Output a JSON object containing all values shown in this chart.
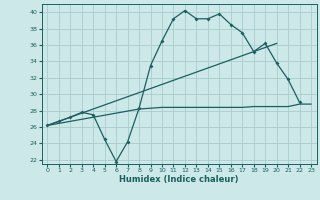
{
  "xlabel": "Humidex (Indice chaleur)",
  "xlim": [
    -0.5,
    23.5
  ],
  "ylim": [
    21.5,
    41.0
  ],
  "xticks": [
    0,
    1,
    2,
    3,
    4,
    5,
    6,
    7,
    8,
    9,
    10,
    11,
    12,
    13,
    14,
    15,
    16,
    17,
    18,
    19,
    20,
    21,
    22,
    23
  ],
  "yticks": [
    22,
    24,
    26,
    28,
    30,
    32,
    34,
    36,
    38,
    40
  ],
  "bg_color": "#cce8e8",
  "line_color": "#1a6060",
  "grid_color": "#aacccc",
  "curve_x": [
    0,
    1,
    2,
    3,
    4,
    5,
    6,
    7,
    8,
    9,
    10,
    11,
    12,
    13,
    14,
    15,
    16,
    17,
    18,
    19,
    20,
    21,
    22
  ],
  "curve_y": [
    26.2,
    26.7,
    27.2,
    27.8,
    27.5,
    24.5,
    21.8,
    24.2,
    28.3,
    33.5,
    36.5,
    39.2,
    40.2,
    39.2,
    39.2,
    39.8,
    38.5,
    37.5,
    35.2,
    36.2,
    33.8,
    31.8,
    29.0
  ],
  "flat_line_x": [
    0,
    8,
    9,
    10,
    11,
    12,
    13,
    14,
    15,
    16,
    17,
    18,
    19,
    20,
    21,
    22,
    23
  ],
  "flat_line_y": [
    26.2,
    28.2,
    28.3,
    28.4,
    28.4,
    28.4,
    28.4,
    28.4,
    28.4,
    28.4,
    28.4,
    28.5,
    28.5,
    28.5,
    28.5,
    28.8,
    28.8
  ],
  "steep_line_x": [
    0,
    20
  ],
  "steep_line_y": [
    26.2,
    36.2
  ]
}
